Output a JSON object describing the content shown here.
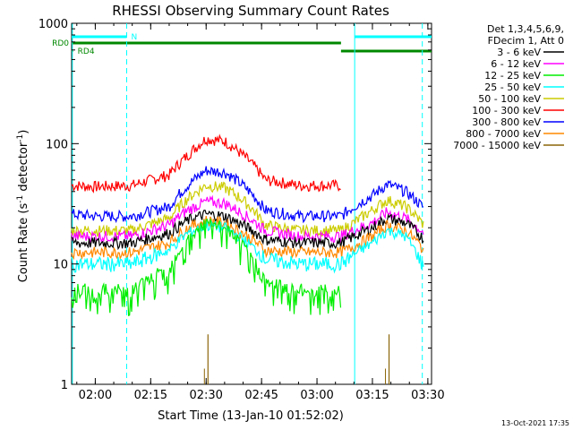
{
  "chart_data": {
    "type": "line",
    "title": "RHESSI Observing Summary Count Rates",
    "xlabel": "Start Time (13-Jan-10 01:52:02)",
    "ylabel_pre": "Count Rate (s",
    "ylabel_sup1": "-1",
    "ylabel_mid": " detector",
    "ylabel_sup2": "-1",
    "ylabel_post": ")",
    "yscale": "log",
    "ylim": [
      1,
      1000
    ],
    "xlim_minutes": [
      -6.4,
      91.0
    ],
    "x_unit": "minutes after 02:00 UT",
    "x_ticks": [
      {
        "label": "02:00",
        "t": 0
      },
      {
        "label": "02:15",
        "t": 15
      },
      {
        "label": "02:30",
        "t": 30
      },
      {
        "label": "02:45",
        "t": 45
      },
      {
        "label": "03:00",
        "t": 60
      },
      {
        "label": "03:15",
        "t": 75
      },
      {
        "label": "03:30",
        "t": 90
      }
    ],
    "y_ticks": [
      {
        "label": "1",
        "v": 1
      },
      {
        "label": "10",
        "v": 10
      },
      {
        "label": "100",
        "v": 100
      },
      {
        "label": "1000",
        "v": 1000
      }
    ],
    "legend": {
      "position": "right",
      "header": [
        "Det 1,3,4,5,6,9,",
        "FDecim 1, Att 0"
      ],
      "entries": [
        {
          "label": "3 - 6 keV",
          "color": "#000000"
        },
        {
          "label": "6 - 12 keV",
          "color": "#ff00ff"
        },
        {
          "label": "12 - 25 keV",
          "color": "#00ee00"
        },
        {
          "label": "25 - 50 keV",
          "color": "#00ffff"
        },
        {
          "label": "50 - 100 keV",
          "color": "#cccc00"
        },
        {
          "label": "100 - 300 keV",
          "color": "#ff0000"
        },
        {
          "label": "300 - 800 keV",
          "color": "#0000ff"
        },
        {
          "label": "800 - 7000 keV",
          "color": "#ff8800"
        },
        {
          "label": "7000 - 15000 keV",
          "color": "#8b6508"
        }
      ]
    },
    "series": [
      {
        "band": "100 - 300 keV",
        "color": "#ff0000",
        "x": [
          -6.4,
          0,
          10,
          20,
          25,
          30,
          35,
          40,
          46,
          55,
          66.5
        ],
        "y": [
          45,
          44,
          45,
          55,
          80,
          110,
          105,
          80,
          50,
          45,
          45
        ]
      },
      {
        "band": "300 - 800 keV",
        "color": "#0000ff",
        "x": [
          -6.4,
          0,
          10,
          20,
          25,
          30,
          35,
          40,
          46,
          55,
          66.5,
          70,
          75,
          79,
          84,
          89
        ],
        "y": [
          26,
          25,
          25,
          30,
          45,
          60,
          58,
          45,
          28,
          25,
          25,
          30,
          37,
          46,
          40,
          29
        ]
      },
      {
        "band": "50 - 100 keV",
        "color": "#cccc00",
        "x": [
          -6.4,
          0,
          10,
          20,
          25,
          30,
          35,
          40,
          46,
          55,
          66.5,
          70,
          75,
          79,
          84,
          89
        ],
        "y": [
          19,
          19,
          19,
          24,
          35,
          45,
          43,
          34,
          21,
          19,
          19,
          22,
          28,
          34,
          30,
          21
        ]
      },
      {
        "band": "6 - 12 keV",
        "color": "#ff00ff",
        "x": [
          -6.4,
          0,
          10,
          20,
          25,
          30,
          35,
          40,
          46,
          55,
          66.5,
          70,
          75,
          79,
          84,
          89
        ],
        "y": [
          17,
          17,
          17,
          21,
          28,
          33,
          32,
          26,
          19,
          17,
          17,
          19,
          22,
          27,
          24,
          18
        ]
      },
      {
        "band": "3 - 6 keV",
        "color": "#000000",
        "x": [
          -6.4,
          0,
          10,
          20,
          25,
          30,
          35,
          40,
          46,
          55,
          66.5,
          70,
          75,
          79,
          84,
          89
        ],
        "y": [
          15,
          15,
          15,
          18,
          23,
          26,
          25,
          21,
          16,
          15,
          15,
          17,
          20,
          24,
          22,
          16
        ]
      },
      {
        "band": "800 - 7000 keV",
        "color": "#ff8800",
        "x": [
          -6.4,
          0,
          10,
          20,
          25,
          30,
          35,
          40,
          46,
          55,
          66.5,
          70,
          75,
          79,
          84,
          89
        ],
        "y": [
          12.5,
          12.5,
          12.5,
          15,
          20,
          23,
          22,
          18,
          13,
          12.5,
          12.5,
          14,
          17,
          21,
          19,
          13
        ]
      },
      {
        "band": "25 - 50 keV",
        "color": "#00ffff",
        "x": [
          -6.4,
          0,
          10,
          20,
          25,
          30,
          35,
          40,
          46,
          55,
          66.5,
          70,
          75,
          79,
          84,
          89
        ],
        "y": [
          10,
          10,
          10,
          13,
          18,
          21,
          20,
          16,
          11,
          10,
          10,
          12,
          15,
          19,
          17,
          9
        ]
      },
      {
        "band": "12 - 25 keV",
        "color": "#00ee00",
        "x": [
          -6.4,
          0,
          10,
          20,
          25,
          30,
          35,
          40,
          46,
          55,
          66.5
        ],
        "y": [
          6,
          6,
          6,
          9,
          16,
          22,
          20,
          14,
          7,
          6,
          6
        ]
      }
    ],
    "brown_spikes": {
      "color": "#8b6508",
      "t": [
        30.5,
        79.5
      ],
      "peak": [
        2.6,
        2.6
      ]
    },
    "vertical_markers": [
      {
        "t": -6.2,
        "color": "#00ffff",
        "style": "solid"
      },
      {
        "t": 8.5,
        "color": "#00ffff",
        "style": "dashed"
      },
      {
        "t": 70.2,
        "color": "#00ffff",
        "style": "solid"
      },
      {
        "t": 88.5,
        "color": "#00ffff",
        "style": "dashed"
      }
    ],
    "flag_bars": [
      {
        "label": "",
        "color": "#00ffff",
        "t0": -6.4,
        "t1": 8.5,
        "row": "n",
        "end_label": "N"
      },
      {
        "label": "",
        "color": "#00ffff",
        "t0": 70.2,
        "t1": 91.0,
        "row": "n",
        "end_label": ""
      },
      {
        "label": "RD0",
        "color": "#008800",
        "t0": -6.4,
        "t1": 66.5,
        "row": "rd0",
        "end_label": ""
      },
      {
        "label": "",
        "color": "#008800",
        "t0": 66.5,
        "t1": 91.0,
        "row": "rd4",
        "end_label": ""
      },
      {
        "label": "",
        "color": "#008800",
        "t0": -6.4,
        "t1": -6.0,
        "row": "rd4",
        "end_label": "RD4"
      }
    ],
    "timestamp": "13-Oct-2021 17:35"
  }
}
